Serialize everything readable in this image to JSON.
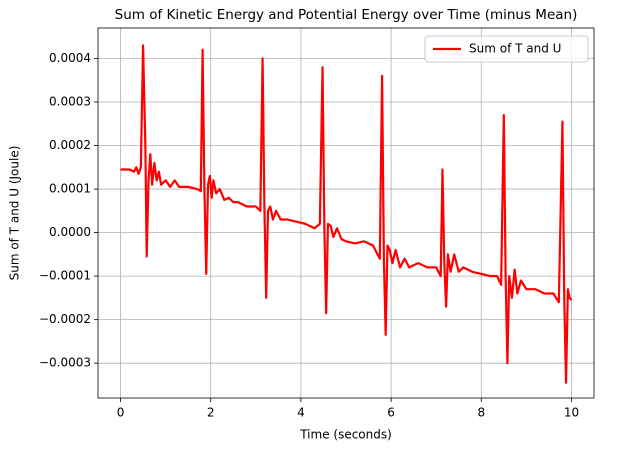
{
  "chart_data": {
    "type": "line",
    "title": "Sum of Kinetic Energy and Potential Energy over Time (minus Mean)",
    "x_label": "Time (seconds)",
    "y_label": "Sum of T and U (Joule)",
    "x": [
      0,
      0.2,
      0.3,
      0.35,
      0.4,
      0.45,
      0.5,
      0.55,
      0.58,
      0.62,
      0.66,
      0.7,
      0.75,
      0.8,
      0.85,
      0.9,
      1.0,
      1.1,
      1.2,
      1.3,
      1.5,
      1.7,
      1.78,
      1.82,
      1.86,
      1.9,
      1.94,
      1.98,
      2.02,
      2.06,
      2.12,
      2.2,
      2.3,
      2.4,
      2.5,
      2.6,
      2.8,
      3.0,
      3.1,
      3.15,
      3.19,
      3.23,
      3.27,
      3.32,
      3.38,
      3.45,
      3.55,
      3.7,
      3.9,
      4.1,
      4.3,
      4.42,
      4.48,
      4.52,
      4.56,
      4.6,
      4.66,
      4.72,
      4.8,
      4.9,
      5.0,
      5.2,
      5.4,
      5.6,
      5.75,
      5.8,
      5.84,
      5.88,
      5.92,
      5.97,
      6.03,
      6.1,
      6.2,
      6.3,
      6.4,
      6.6,
      6.8,
      7.0,
      7.1,
      7.14,
      7.18,
      7.22,
      7.26,
      7.32,
      7.4,
      7.5,
      7.6,
      7.8,
      8.0,
      8.2,
      8.35,
      8.44,
      8.5,
      8.54,
      8.58,
      8.62,
      8.68,
      8.74,
      8.8,
      8.88,
      9.0,
      9.2,
      9.4,
      9.6,
      9.72,
      9.8,
      9.84,
      9.88,
      9.92,
      9.96,
      10.0
    ],
    "series": [
      {
        "name": "Sum of T and U",
        "color": "#ff0000",
        "values": [
          0.000145,
          0.000145,
          0.00014,
          0.00015,
          0.000135,
          0.00015,
          0.00043,
          0.0002,
          -5.5e-05,
          0.00012,
          0.00018,
          0.00011,
          0.00016,
          0.00012,
          0.00014,
          0.00011,
          0.00012,
          0.000105,
          0.00012,
          0.000105,
          0.000105,
          0.0001,
          9.5e-05,
          0.00042,
          0.0001,
          -9.5e-05,
          0.00011,
          0.00013,
          8e-05,
          0.00012,
          9e-05,
          0.0001,
          7.5e-05,
          8e-05,
          7e-05,
          7e-05,
          6e-05,
          6e-05,
          5e-05,
          0.0004,
          6e-05,
          -0.00015,
          5e-05,
          6e-05,
          3e-05,
          5e-05,
          3e-05,
          3e-05,
          2.5e-05,
          2e-05,
          1e-05,
          2e-05,
          0.00038,
          1e-05,
          -0.000185,
          2e-05,
          1.5e-05,
          -1e-05,
          1e-05,
          -1.5e-05,
          -2e-05,
          -2.5e-05,
          -2e-05,
          -3e-05,
          -6e-05,
          0.00036,
          -6e-05,
          -0.000235,
          -3e-05,
          -4e-05,
          -7e-05,
          -4e-05,
          -8e-05,
          -6e-05,
          -8e-05,
          -7e-05,
          -8e-05,
          -8e-05,
          -0.0001,
          0.000145,
          -7e-05,
          -0.00017,
          -5e-05,
          -9e-05,
          -5e-05,
          -9e-05,
          -8e-05,
          -9e-05,
          -9.5e-05,
          -0.0001,
          -0.0001,
          -0.00012,
          0.00027,
          -0.0001,
          -0.0003,
          -0.0001,
          -0.00015,
          -8.5e-05,
          -0.00014,
          -0.00011,
          -0.00013,
          -0.00013,
          -0.00014,
          -0.00014,
          -0.00016,
          0.000255,
          -0.00015,
          -0.000345,
          -0.00013,
          -0.00015,
          -0.000155
        ]
      }
    ],
    "xlim": [
      -0.5,
      10.5
    ],
    "ylim": [
      -0.00038,
      0.00047
    ],
    "xticks": [
      0,
      2,
      4,
      6,
      8,
      10
    ],
    "yticks": [
      {
        "value": -0.0003,
        "label": "−0.0003"
      },
      {
        "value": -0.0002,
        "label": "−0.0002"
      },
      {
        "value": -0.0001,
        "label": "−0.0001"
      },
      {
        "value": 0,
        "label": "0.0000"
      },
      {
        "value": 0.0001,
        "label": "0.0001"
      },
      {
        "value": 0.0002,
        "label": "0.0002"
      },
      {
        "value": 0.0003,
        "label": "0.0003"
      },
      {
        "value": 0.0004,
        "label": "0.0004"
      }
    ],
    "grid": true,
    "legend": "upper right"
  }
}
